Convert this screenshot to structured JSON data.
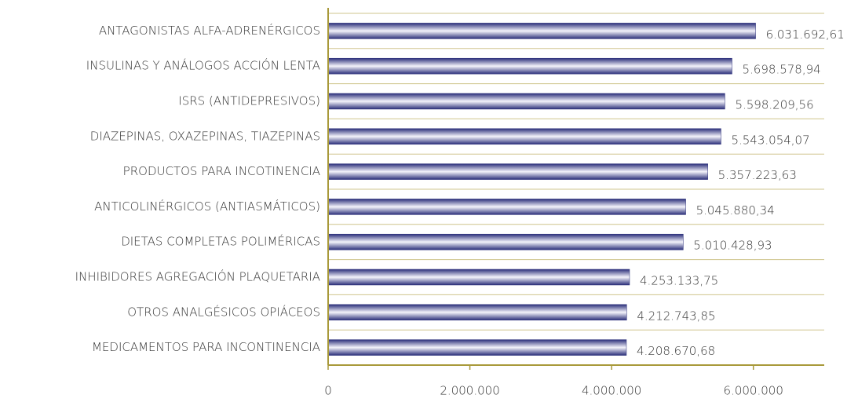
{
  "chart_data": {
    "type": "bar",
    "orientation": "horizontal",
    "categories": [
      "ANTAGONISTAS ALFA-ADRENÉRGICOS",
      "INSULINAS Y ANÁLOGOS ACCIÓN LENTA",
      "ISRS (ANTIDEPRESIVOS)",
      "DIAZEPINAS, OXAZEPINAS, TIAZEPINAS",
      "PRODUCTOS PARA INCOTINENCIA",
      "ANTICOLINÉRGICOS (ANTIASMÁTICOS)",
      "DIETAS COMPLETAS POLIMÉRICAS",
      "INHIBIDORES AGREGACIÓN PLAQUETARIA",
      "OTROS ANALGÉSICOS OPIÁCEOS",
      "MEDICAMENTOS PARA INCONTINENCIA"
    ],
    "values": [
      6031692.61,
      5698578.94,
      5598209.56,
      5543054.07,
      5357223.63,
      5045880.34,
      5010428.93,
      4253133.75,
      4212743.85,
      4208670.68
    ],
    "value_labels": [
      "6.031.692,61",
      "5.698.578,94",
      "5.598.209,56",
      "5.543.054,07",
      "5.357.223,63",
      "5.045.880,34",
      "5.010.428,93",
      "4.253.133,75",
      "4.212.743,85",
      "4.208.670,68"
    ],
    "color": "#2b2f7a",
    "xlim": [
      0,
      7000000
    ],
    "xticks": [
      0,
      {
        "value": 2000000,
        "label": "2.000.000"
      },
      {
        "value": 4000000,
        "label": "4.000.000"
      },
      {
        "value": 6000000,
        "label": "6.000.000"
      }
    ],
    "grid": true
  }
}
